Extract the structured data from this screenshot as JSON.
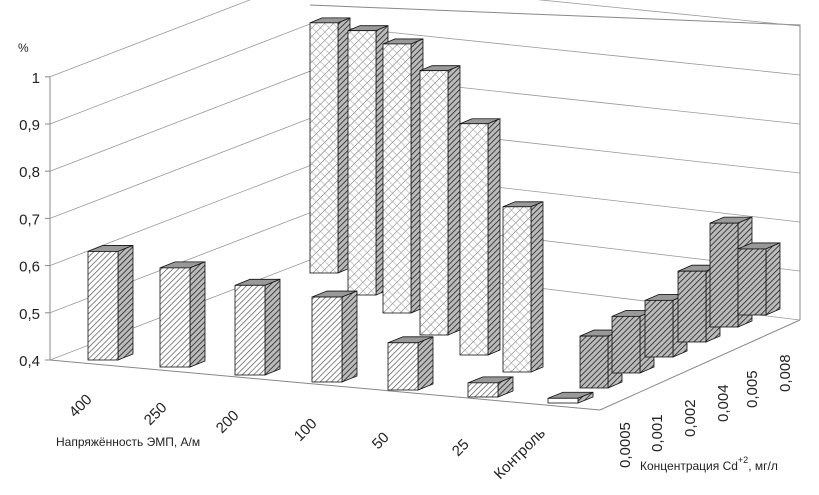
{
  "chart_data": {
    "type": "bar",
    "subtype": "3d-column",
    "ylabel": "%",
    "ylim": [
      0.4,
      1.0
    ],
    "yticks": [
      "0,4",
      "0,5",
      "0,6",
      "0,7",
      "0,8",
      "0,9",
      "1"
    ],
    "grid": true,
    "x_axis": {
      "label": "Напряжённость ЭМП, А/м",
      "categories": [
        "400",
        "250",
        "200",
        "100",
        "50",
        "25",
        "Контроль"
      ]
    },
    "z_axis": {
      "label_main": "Концентрация Cd",
      "label_sup": "+2",
      "label_unit": ", мг/л",
      "categories": [
        "0,0005",
        "0,001",
        "0,002",
        "0,004",
        "0,005",
        "0,008"
      ]
    },
    "series": [
      {
        "values": [
          0.63,
          0.61,
          0.59,
          0.58,
          0.5,
          0.43,
          0.41
        ]
      },
      {
        "values": [
          0.51,
          0.52,
          0.52,
          0.55,
          0.62,
          0.54
        ]
      },
      {
        "values": [
          0.93,
          0.96,
          0.97,
          0.96,
          0.89,
          0.75
        ]
      }
    ],
    "colors": {
      "face": "#ffffff",
      "side": "#777777",
      "top": "#999999",
      "line": "#111111"
    }
  }
}
